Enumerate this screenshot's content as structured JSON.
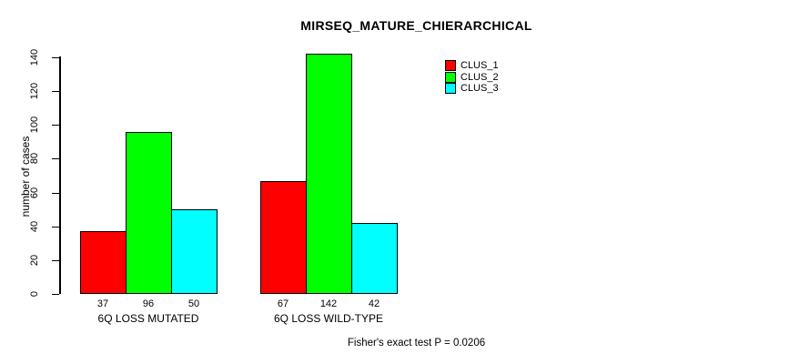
{
  "title": "MIRSEQ_MATURE_CHIERARCHICAL",
  "caption": "Fisher's exact test P = 0.0206",
  "chart_data": {
    "type": "bar",
    "title": "MIRSEQ_MATURE_CHIERARCHICAL",
    "xlabel": "",
    "ylabel": "number of cases",
    "ylim": [
      0,
      140
    ],
    "yticks": [
      0,
      20,
      40,
      60,
      80,
      100,
      120,
      140
    ],
    "grid": false,
    "categories": [
      "6Q LOSS MUTATED",
      "6Q LOSS WILD-TYPE"
    ],
    "series": [
      {
        "name": "CLUS_1",
        "color": "#ff0000",
        "values": [
          37,
          67
        ]
      },
      {
        "name": "CLUS_2",
        "color": "#00ff00",
        "values": [
          96,
          142
        ]
      },
      {
        "name": "CLUS_3",
        "color": "#00ffff",
        "values": [
          50,
          42
        ]
      }
    ],
    "bar_value_labels": [
      [
        37,
        96,
        50
      ],
      [
        67,
        142,
        42
      ]
    ],
    "legend": {
      "position": "top-right",
      "entries": [
        "CLUS_1",
        "CLUS_2",
        "CLUS_3"
      ],
      "colors": [
        "#ff0000",
        "#00ff00",
        "#00ffff"
      ]
    },
    "annotation": "Fisher's exact test P = 0.0206"
  }
}
